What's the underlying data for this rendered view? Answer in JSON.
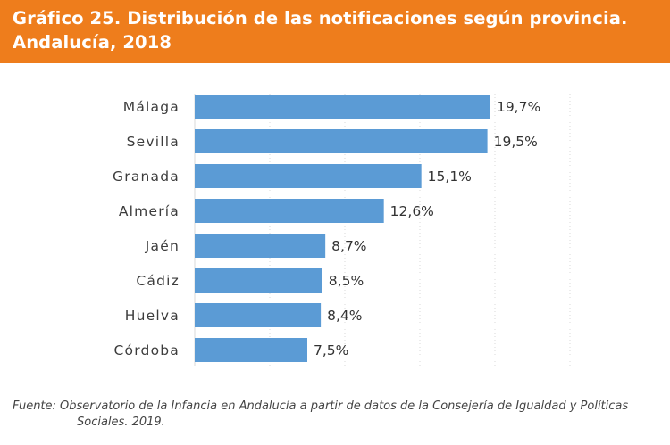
{
  "header": {
    "title": "Gráfico 25. Distribución de las notificaciones según provincia. Andalucía, 2018"
  },
  "colors": {
    "header_bg": "#ee7d1c",
    "bar": "#5b9bd5"
  },
  "chart_data": {
    "type": "bar",
    "orientation": "horizontal",
    "categories": [
      "Málaga",
      "Sevilla",
      "Granada",
      "Almería",
      "Jaén",
      "Cádiz",
      "Huelva",
      "Córdoba"
    ],
    "values": [
      19.7,
      19.5,
      15.1,
      12.6,
      8.7,
      8.5,
      8.4,
      7.5
    ],
    "value_labels": [
      "19,7%",
      "19,5%",
      "15,1%",
      "12,6%",
      "8,7%",
      "8,5%",
      "8,4%",
      "7,5%"
    ],
    "xlim": [
      0,
      25
    ],
    "grid": true
  },
  "footer": {
    "source_line1": "Fuente: Observatorio de la Infancia en Andalucía a partir de datos de la Consejería de Igualdad y Políticas",
    "source_line2": "Sociales. 2019."
  }
}
